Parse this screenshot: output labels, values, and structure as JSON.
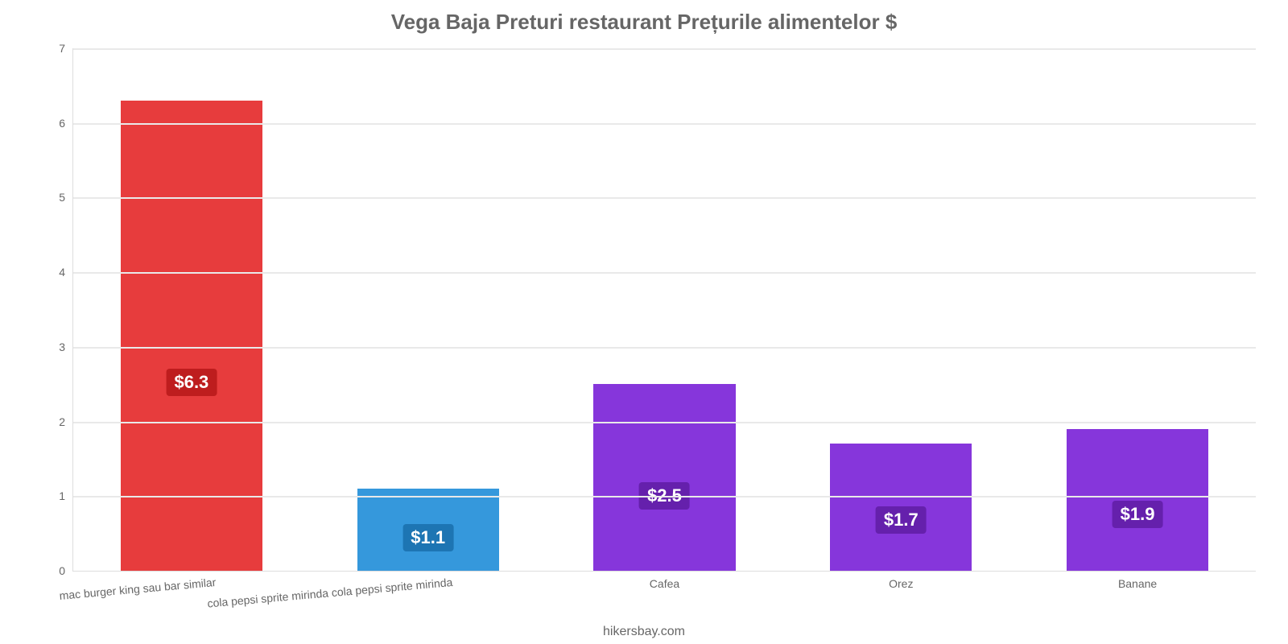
{
  "chart": {
    "type": "bar",
    "title": "Vega Baja Preturi restaurant Prețurile alimentelor $",
    "title_fontsize": 26,
    "title_color": "#666666",
    "caption": "hikersbay.com",
    "caption_fontsize": 16,
    "caption_color": "#666666",
    "background_color": "#ffffff",
    "grid_color": "#e9e9e9",
    "axis_label_color": "#666666",
    "axis_label_fontsize": 14,
    "ylim": [
      0,
      7
    ],
    "ytick_step": 1,
    "yticks": [
      0,
      1,
      2,
      3,
      4,
      5,
      6,
      7
    ],
    "bar_width_pct": 60,
    "badge_fontsize": 22,
    "badge_text_color": "#ffffff",
    "categories": [
      {
        "label": "mac burger king sau bar similar",
        "long": true
      },
      {
        "label": "cola pepsi sprite mirinda cola pepsi sprite mirinda",
        "long": true
      },
      {
        "label": "Cafea",
        "long": false
      },
      {
        "label": "Orez",
        "long": false
      },
      {
        "label": "Banane",
        "long": false
      }
    ],
    "series": [
      {
        "value": 6.3,
        "display": "$6.3",
        "bar_color": "#e73c3d",
        "badge_color": "#be1d1e"
      },
      {
        "value": 1.1,
        "display": "$1.1",
        "bar_color": "#3598dc",
        "badge_color": "#1d75b3"
      },
      {
        "value": 2.5,
        "display": "$2.5",
        "bar_color": "#8636db",
        "badge_color": "#6520ac"
      },
      {
        "value": 1.7,
        "display": "$1.7",
        "bar_color": "#8636db",
        "badge_color": "#6520ac"
      },
      {
        "value": 1.9,
        "display": "$1.9",
        "bar_color": "#8636db",
        "badge_color": "#6520ac"
      }
    ]
  }
}
